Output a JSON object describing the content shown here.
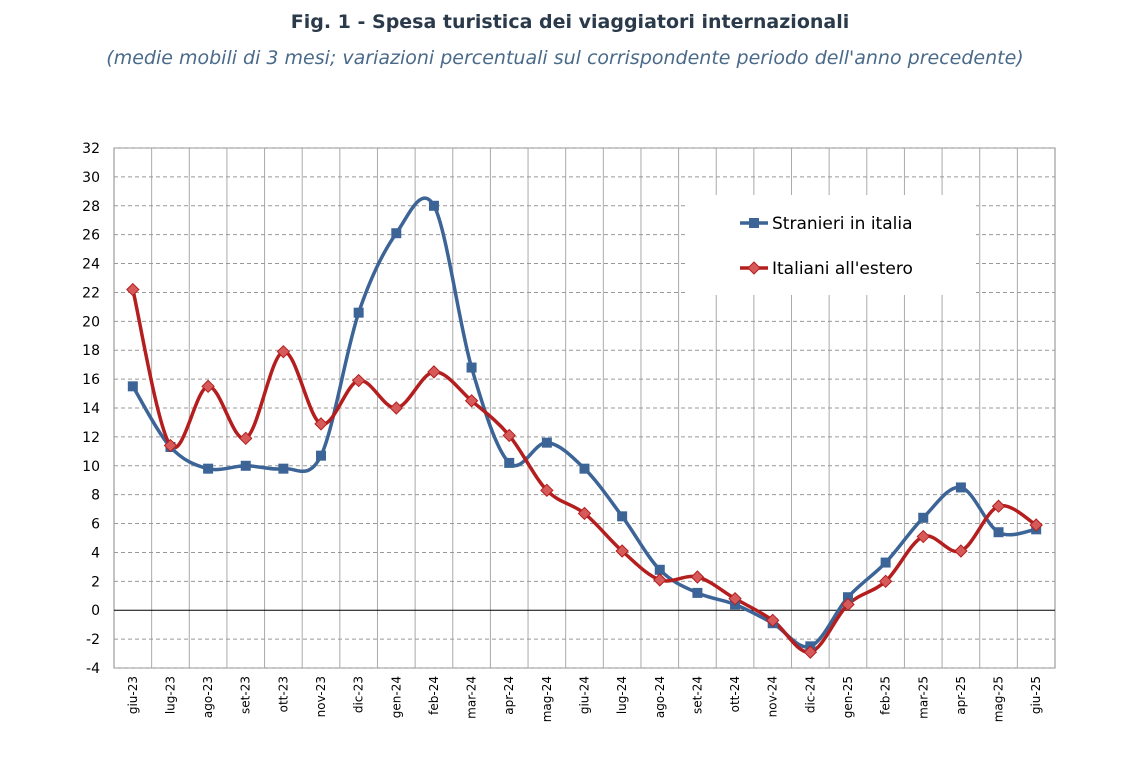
{
  "chart_data": {
    "type": "line",
    "title": "Fig. 1 - Spesa turistica dei viaggiatori internazionali",
    "subtitle": "(medie mobili di 3 mesi; variazioni percentuali sul corrispondente periodo dell'anno precedente)",
    "categories": [
      "giu-23",
      "lug-23",
      "ago-23",
      "set-23",
      "ott-23",
      "nov-23",
      "dic-23",
      "gen-24",
      "feb-24",
      "mar-24",
      "apr-24",
      "mag-24",
      "giu-24",
      "lug-24",
      "ago-24",
      "set-24",
      "ott-24",
      "nov-24",
      "dic-24",
      "gen-25",
      "feb-25",
      "mar-25",
      "apr-25",
      "mag-25",
      "giu-25"
    ],
    "series": [
      {
        "name": "Stranieri in italia",
        "color": "#3c6496",
        "marker": "square",
        "values": [
          15.5,
          11.3,
          9.8,
          10.0,
          9.8,
          10.7,
          20.6,
          26.1,
          28.0,
          16.8,
          10.2,
          11.6,
          9.8,
          6.5,
          2.8,
          1.2,
          0.4,
          -0.9,
          -2.5,
          0.9,
          3.3,
          6.4,
          8.5,
          5.4,
          5.6
        ]
      },
      {
        "name": "Italiani all'estero",
        "color": "#b41e1e",
        "marker": "diamond",
        "values": [
          22.2,
          11.4,
          15.5,
          11.9,
          17.9,
          12.9,
          15.9,
          14.0,
          16.5,
          14.5,
          12.1,
          8.3,
          6.7,
          4.1,
          2.1,
          2.3,
          0.8,
          -0.7,
          -2.9,
          0.4,
          2.0,
          5.1,
          4.1,
          7.2,
          5.9
        ]
      }
    ],
    "ylim": [
      -4,
      32
    ],
    "yticks": [
      -4,
      -2,
      0,
      2,
      4,
      6,
      8,
      10,
      12,
      14,
      16,
      18,
      20,
      22,
      24,
      26,
      28,
      30,
      32
    ],
    "grid": true
  }
}
